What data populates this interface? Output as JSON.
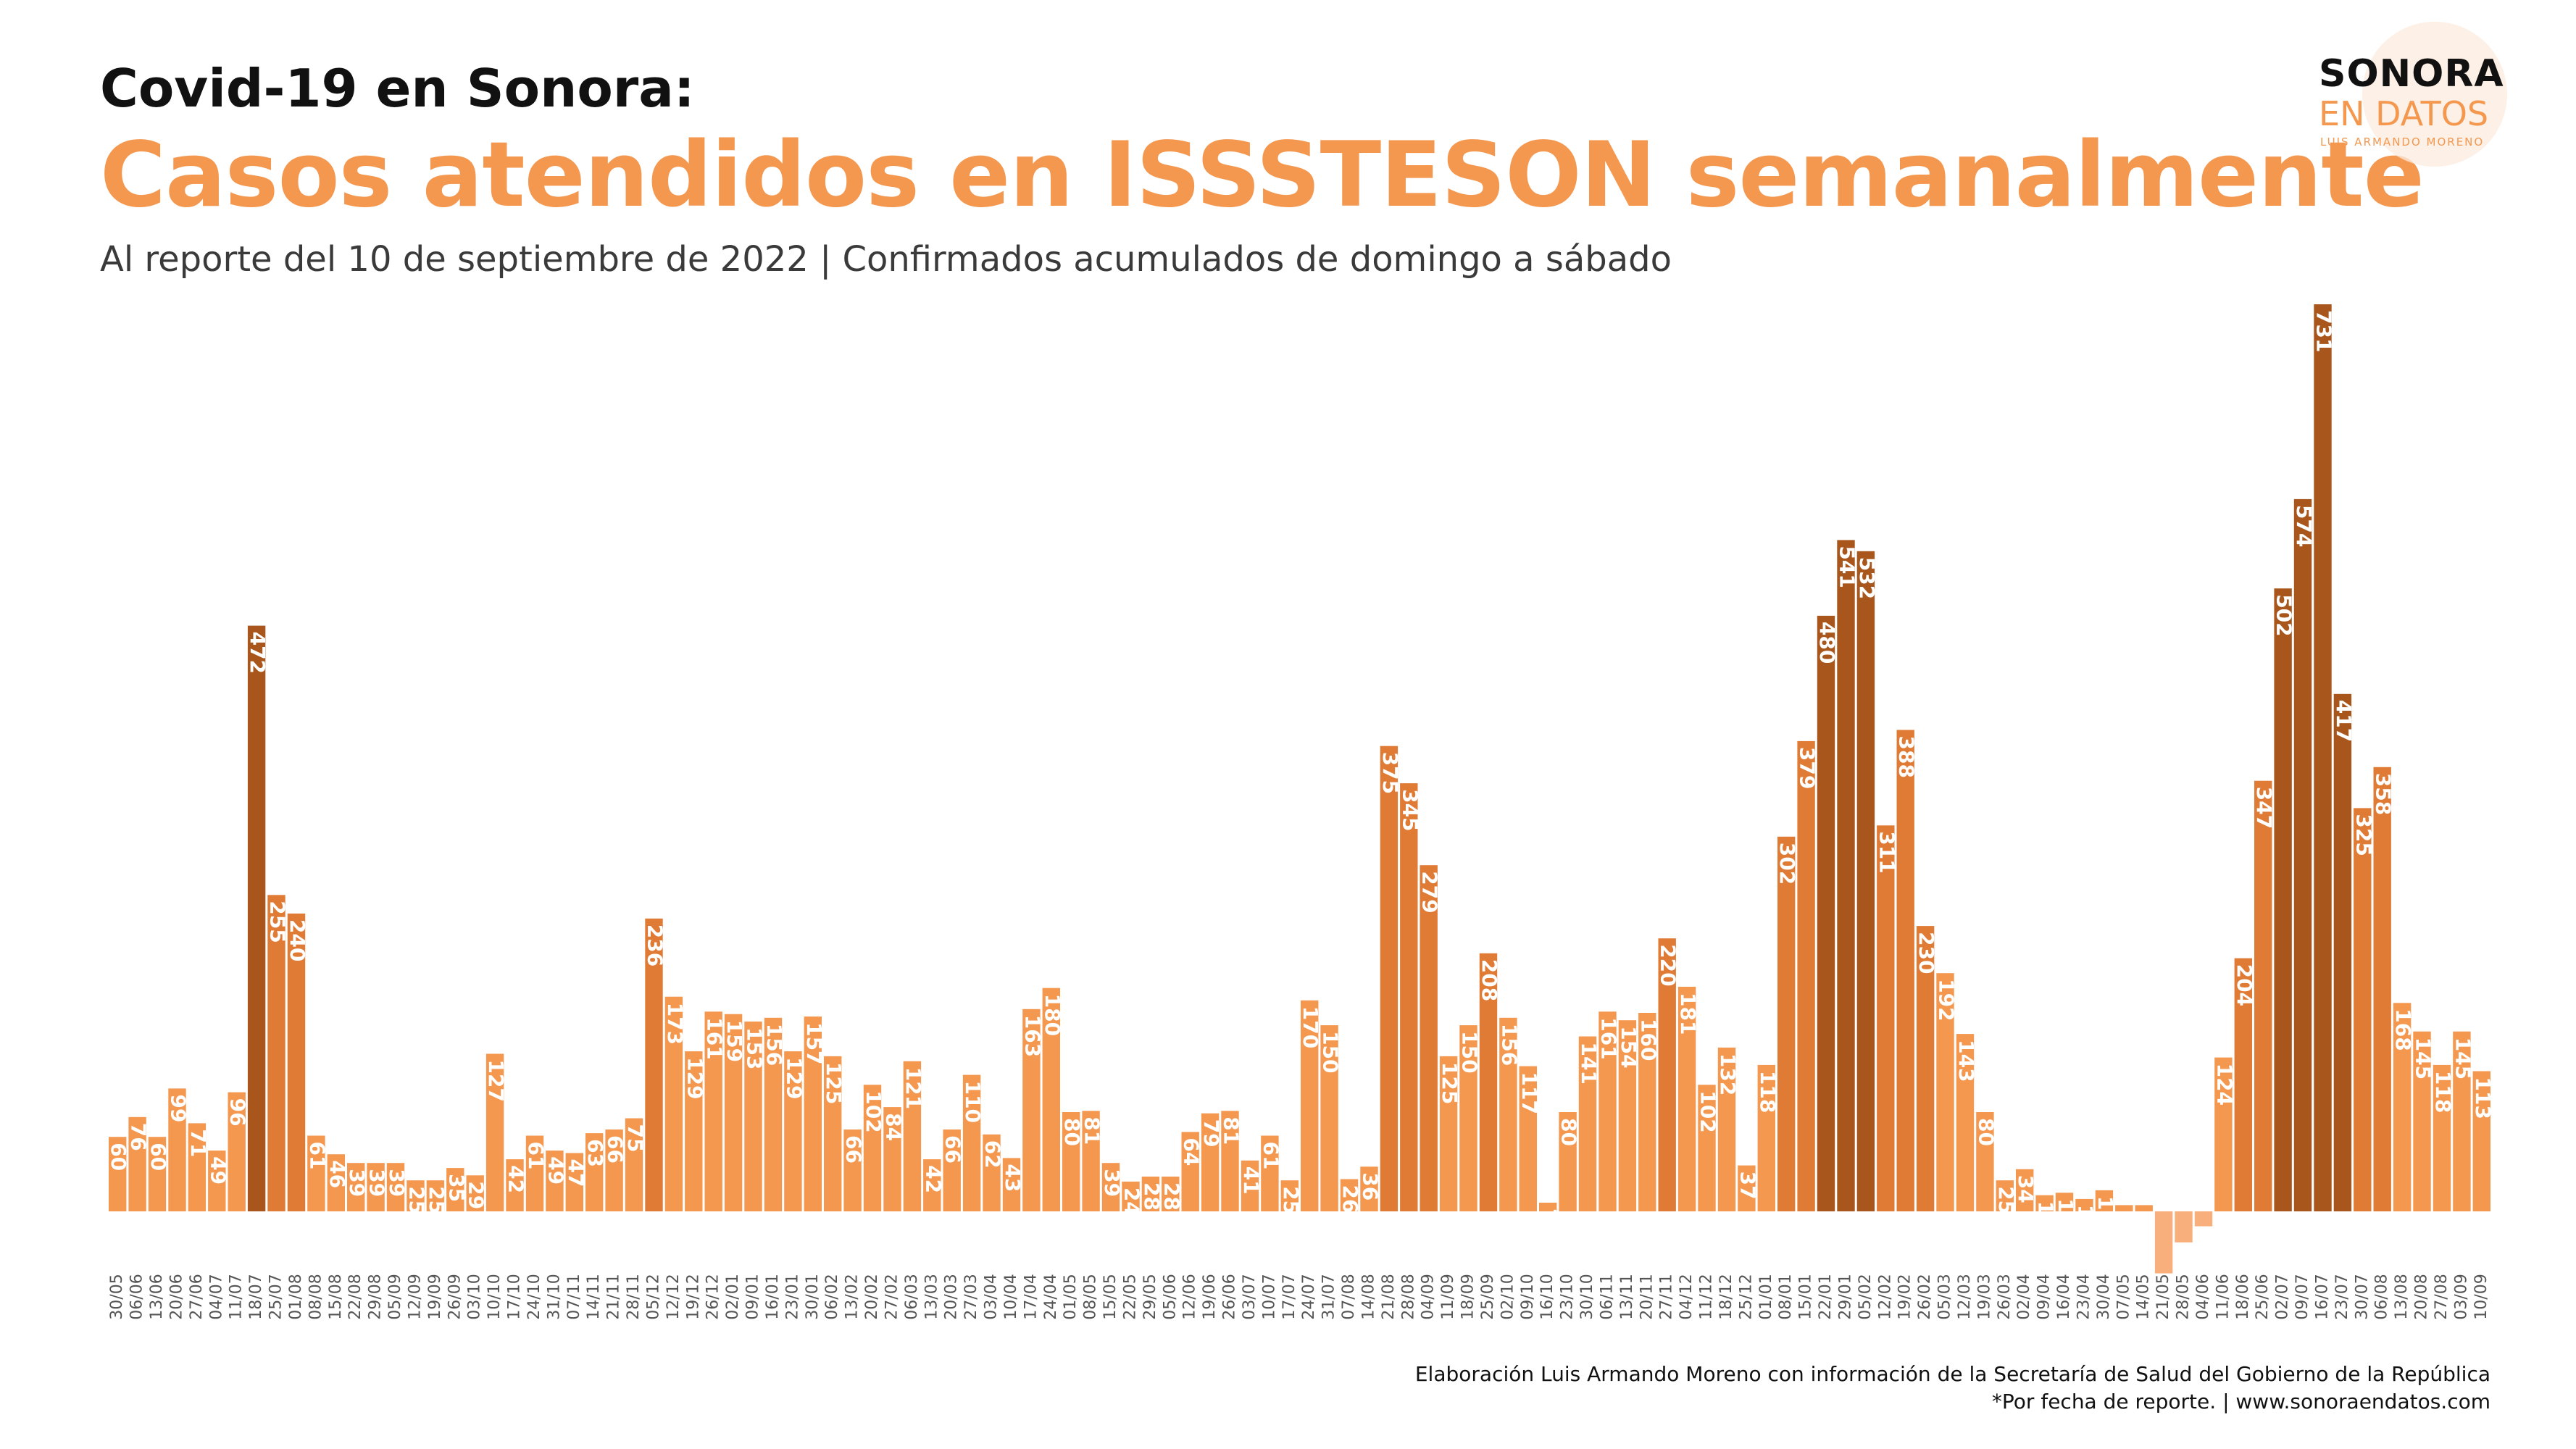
{
  "header": {
    "title_line1": "Covid-19  en Sonora:",
    "title_line2": "Casos atendidos en ISSSTESON semanalmente",
    "subtitle": "Al reporte del 10 de septiembre de 2022 | Confirmados acumulados de domingo a sábado"
  },
  "logo": {
    "line1": "SONORA",
    "line2": "EN DATOS",
    "line3": "LUIS ARMANDO MORENO"
  },
  "footer": {
    "credit": "Elaboración Luis Armando Moreno con información de la Secretaría de Salud del Gobierno de la República",
    "note": "*Por fecha de reporte. | www.sonoraendatos.com"
  },
  "colors": {
    "light": "#F4974F",
    "mid": "#E07B36",
    "dark": "#A8561B",
    "negative": "#F8AF7C"
  },
  "chart_data": {
    "type": "bar",
    "title": "Casos atendidos en ISSSTESON semanalmente",
    "xlabel": "",
    "ylabel": "",
    "ylim": [
      -30,
      731
    ],
    "grid": false,
    "legend": "none",
    "tick_labels": [
      "30/05",
      "06/06",
      "13/06",
      "20/06",
      "27/06",
      "04/07",
      "11/07",
      "18/07",
      "25/07",
      "01/08",
      "08/08",
      "15/08",
      "22/08",
      "29/08",
      "05/09",
      "12/09",
      "19/09",
      "26/09",
      "03/10",
      "10/10",
      "17/10",
      "24/10",
      "31/10",
      "07/11",
      "14/11",
      "21/11",
      "28/11",
      "05/12",
      "12/12",
      "19/12",
      "26/12",
      "02/01",
      "09/01",
      "16/01",
      "23/01",
      "30/01",
      "06/02",
      "13/02",
      "20/02",
      "27/02",
      "06/03",
      "13/03",
      "20/03",
      "27/03",
      "03/04",
      "10/04",
      "17/04",
      "24/04",
      "01/05",
      "08/05",
      "15/05",
      "22/05",
      "29/05",
      "05/06",
      "12/06",
      "19/06",
      "26/06",
      "03/07",
      "10/07",
      "17/07",
      "24/07",
      "31/07",
      "07/08",
      "14/08",
      "21/08",
      "28/08",
      "04/09",
      "11/09",
      "18/09",
      "25/09",
      "02/10",
      "09/10",
      "16/10",
      "23/10",
      "30/10",
      "06/11",
      "13/11",
      "20/11",
      "27/11",
      "04/12",
      "11/12",
      "18/12",
      "25/12",
      "01/01",
      "08/01",
      "15/01",
      "22/01",
      "29/01",
      "05/02",
      "12/02",
      "19/02",
      "26/02",
      "05/03",
      "12/03",
      "19/03",
      "26/03",
      "02/04",
      "09/04",
      "16/04",
      "23/04",
      "30/04",
      "07/05",
      "14/05",
      "21/05",
      "28/05",
      "04/06",
      "11/06",
      "18/06",
      "25/06",
      "02/07",
      "09/07",
      "16/07",
      "23/07",
      "30/07",
      "06/08",
      "13/08",
      "20/08",
      "27/08",
      "03/09",
      "10/09"
    ],
    "values": [
      60,
      76,
      60,
      99,
      71,
      49,
      96,
      472,
      255,
      240,
      61,
      46,
      39,
      39,
      39,
      25,
      25,
      35,
      29,
      127,
      42,
      61,
      49,
      47,
      63,
      66,
      75,
      236,
      173,
      129,
      161,
      159,
      153,
      156,
      129,
      157,
      125,
      66,
      102,
      84,
      121,
      42,
      66,
      110,
      62,
      43,
      163,
      180,
      80,
      81,
      39,
      24,
      28,
      28,
      64,
      79,
      81,
      41,
      61,
      25,
      170,
      150,
      26,
      36,
      375,
      345,
      279,
      125,
      150,
      208,
      156,
      117,
      7,
      80,
      141,
      161,
      154,
      160,
      220,
      181,
      102,
      132,
      37,
      118,
      302,
      379,
      480,
      541,
      532,
      311,
      388,
      230,
      192,
      143,
      80,
      25,
      34,
      13,
      15,
      10,
      17,
      5,
      5,
      -50,
      -25,
      -12,
      124,
      204,
      347,
      502,
      574,
      731,
      417,
      325,
      358,
      168,
      145,
      118,
      145,
      113
    ],
    "labels": [
      "60",
      "76",
      "60",
      "99",
      "71",
      "49",
      "96",
      "472",
      "255",
      "240",
      "61",
      "46",
      "39",
      "39",
      "39",
      "25",
      "25",
      "35",
      "29",
      "127",
      "42",
      "61",
      "49",
      "47",
      "63",
      "66",
      "75",
      "236",
      "173",
      "129",
      "161",
      "159",
      "153",
      "156",
      "129",
      "157",
      "125",
      "66",
      "102",
      "84",
      "121",
      "42",
      "66",
      "110",
      "62",
      "43",
      "163",
      "180",
      "80",
      "81",
      "39",
      "24",
      "28",
      "28",
      "64",
      "79",
      "81",
      "41",
      "61",
      "25",
      "170",
      "150",
      "26",
      "36",
      "375",
      "345",
      "279",
      "125",
      "150",
      "208",
      "156",
      "117",
      "7",
      "80",
      "141",
      "161",
      "154",
      "160",
      "220",
      "181",
      "102",
      "132",
      "37",
      "118",
      "302",
      "379",
      "480",
      "541",
      "532",
      "311",
      "388",
      "230",
      "192",
      "143",
      "80",
      "25",
      "34",
      "13",
      "15",
      "10",
      "17",
      "5",
      "5",
      "",
      "",
      "",
      "124",
      "204",
      "347",
      "502",
      "574",
      "731",
      "417",
      "325",
      "358",
      "168",
      "145",
      "118",
      "145",
      "113"
    ]
  }
}
